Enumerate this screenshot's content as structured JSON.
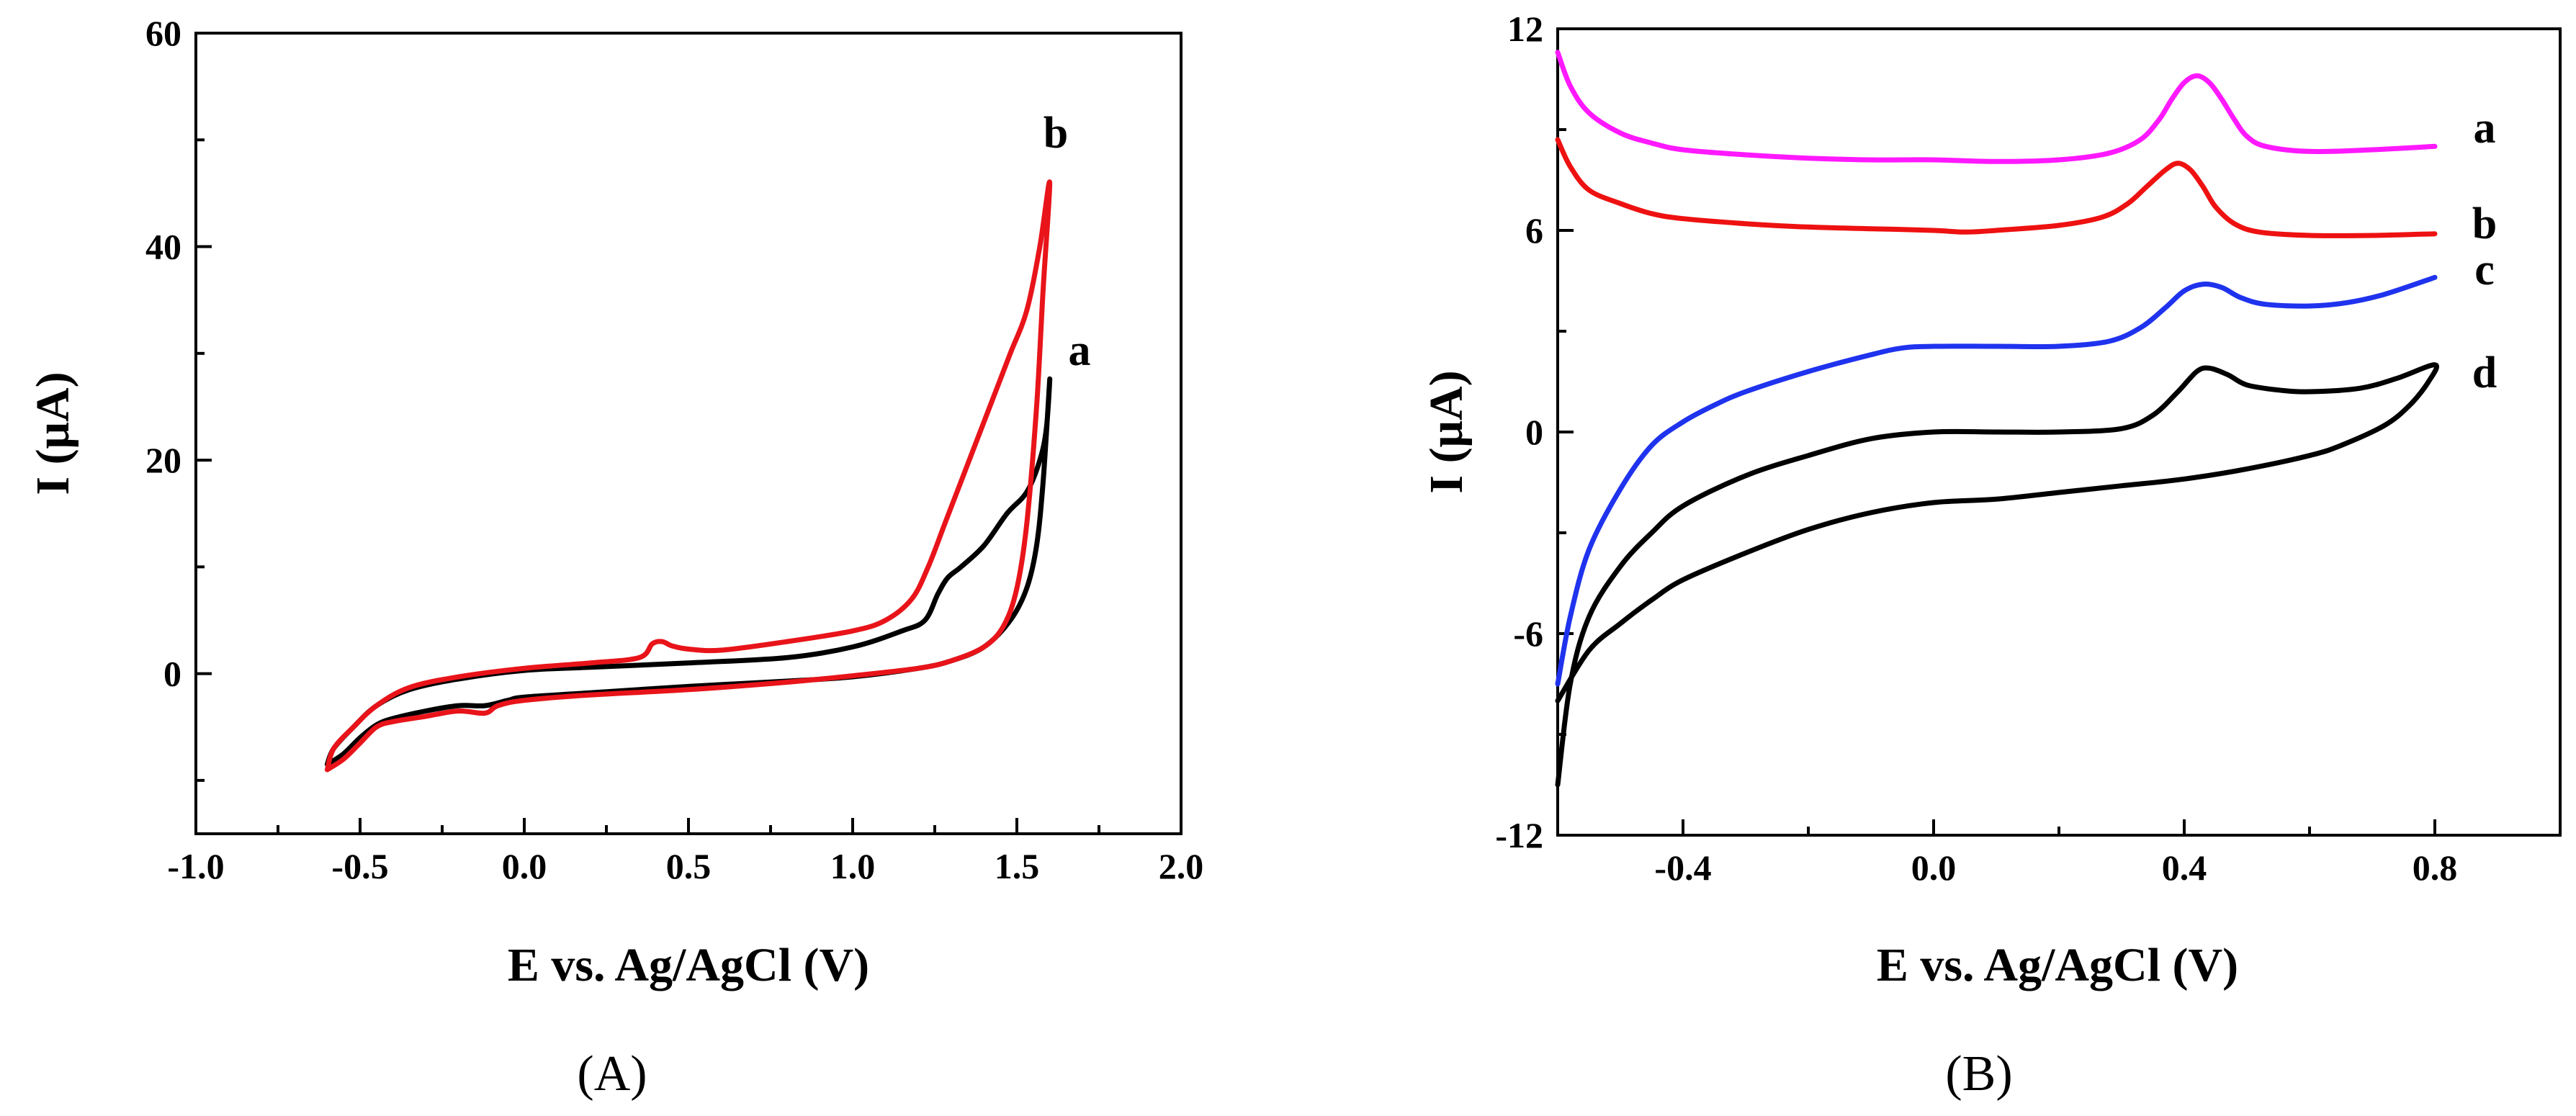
{
  "chart_data": [
    {
      "type": "line",
      "panel_label": "(A)",
      "xlabel": "E vs. Ag/AgCl (V)",
      "ylabel": "I (μA)",
      "xlim": [
        -1.0,
        2.0
      ],
      "ylim": [
        -15,
        60
      ],
      "xticks": [
        -1.0,
        -0.5,
        0.0,
        0.5,
        1.0,
        1.5,
        2.0
      ],
      "xtick_labels": [
        "-1.0",
        "-0.5",
        "0.0",
        "0.5",
        "1.0",
        "1.5",
        "2.0"
      ],
      "yticks": [
        0,
        20,
        40,
        60
      ],
      "ytick_labels": [
        "0",
        "20",
        "40",
        "60"
      ],
      "series": [
        {
          "name": "a",
          "color": "#000000",
          "points": [
            [
              -0.6,
              -8.5
            ],
            [
              -0.55,
              -7.5
            ],
            [
              -0.5,
              -6
            ],
            [
              -0.45,
              -4.8
            ],
            [
              -0.4,
              -4.2
            ],
            [
              -0.3,
              -3.5
            ],
            [
              -0.2,
              -3
            ],
            [
              -0.12,
              -3
            ],
            [
              -0.05,
              -2.5
            ],
            [
              0.0,
              -2.2
            ],
            [
              0.2,
              -1.8
            ],
            [
              0.5,
              -1.2
            ],
            [
              0.8,
              -0.7
            ],
            [
              1.0,
              -0.3
            ],
            [
              1.2,
              0.5
            ],
            [
              1.3,
              1.2
            ],
            [
              1.4,
              2.5
            ],
            [
              1.48,
              5
            ],
            [
              1.53,
              8
            ],
            [
              1.56,
              12
            ],
            [
              1.58,
              18
            ],
            [
              1.6,
              27.5
            ],
            [
              1.59,
              23
            ],
            [
              1.57,
              20
            ],
            [
              1.53,
              17
            ],
            [
              1.47,
              15
            ],
            [
              1.4,
              12
            ],
            [
              1.33,
              10
            ],
            [
              1.29,
              9
            ],
            [
              1.26,
              7.5
            ],
            [
              1.22,
              5
            ],
            [
              1.15,
              4
            ],
            [
              1.0,
              2.5
            ],
            [
              0.8,
              1.5
            ],
            [
              0.5,
              1
            ],
            [
              0.2,
              0.6
            ],
            [
              0.0,
              0.3
            ],
            [
              -0.2,
              -0.5
            ],
            [
              -0.35,
              -1.5
            ],
            [
              -0.45,
              -3
            ],
            [
              -0.52,
              -5
            ],
            [
              -0.58,
              -7
            ],
            [
              -0.6,
              -8.5
            ]
          ]
        },
        {
          "name": "b",
          "color": "#e8141a",
          "points": [
            [
              -0.6,
              -9
            ],
            [
              -0.55,
              -8
            ],
            [
              -0.5,
              -6.5
            ],
            [
              -0.45,
              -5
            ],
            [
              -0.4,
              -4.5
            ],
            [
              -0.3,
              -4
            ],
            [
              -0.2,
              -3.5
            ],
            [
              -0.12,
              -3.7
            ],
            [
              -0.08,
              -3
            ],
            [
              0.0,
              -2.5
            ],
            [
              0.2,
              -2
            ],
            [
              0.5,
              -1.5
            ],
            [
              0.8,
              -0.8
            ],
            [
              1.0,
              -0.2
            ],
            [
              1.2,
              0.5
            ],
            [
              1.3,
              1.2
            ],
            [
              1.4,
              2.5
            ],
            [
              1.46,
              4.5
            ],
            [
              1.5,
              8
            ],
            [
              1.53,
              14
            ],
            [
              1.56,
              25
            ],
            [
              1.58,
              36
            ],
            [
              1.6,
              46
            ],
            [
              1.57,
              40
            ],
            [
              1.53,
              34
            ],
            [
              1.48,
              30
            ],
            [
              1.43,
              26
            ],
            [
              1.38,
              22
            ],
            [
              1.33,
              18
            ],
            [
              1.28,
              14
            ],
            [
              1.23,
              10
            ],
            [
              1.18,
              7
            ],
            [
              1.1,
              5
            ],
            [
              1.0,
              4
            ],
            [
              0.8,
              3
            ],
            [
              0.6,
              2.2
            ],
            [
              0.5,
              2.3
            ],
            [
              0.45,
              2.6
            ],
            [
              0.42,
              3
            ],
            [
              0.39,
              2.8
            ],
            [
              0.35,
              1.5
            ],
            [
              0.2,
              1
            ],
            [
              0.0,
              0.5
            ],
            [
              -0.2,
              -0.3
            ],
            [
              -0.35,
              -1.3
            ],
            [
              -0.45,
              -3
            ],
            [
              -0.52,
              -5
            ],
            [
              -0.58,
              -7
            ],
            [
              -0.6,
              -9
            ]
          ]
        }
      ],
      "annotations": [
        "a",
        "b"
      ]
    },
    {
      "type": "line",
      "panel_label": "(B)",
      "xlabel": "E vs. Ag/AgCl (V)",
      "ylabel": "I (μA)",
      "xlim": [
        -0.6,
        1.0
      ],
      "ylim": [
        -12,
        12
      ],
      "xticks": [
        -0.4,
        0.0,
        0.4,
        0.8
      ],
      "xtick_labels": [
        "-0.4",
        "0.0",
        "0.4",
        "0.8"
      ],
      "yticks": [
        -12,
        -6,
        0,
        6,
        12
      ],
      "ytick_labels": [
        "-12",
        "-6",
        "0",
        "6",
        "12"
      ],
      "series": [
        {
          "name": "a",
          "color": "#ff19ff",
          "points": [
            [
              -0.6,
              11.3
            ],
            [
              -0.58,
              10.3
            ],
            [
              -0.55,
              9.5
            ],
            [
              -0.5,
              8.9
            ],
            [
              -0.45,
              8.6
            ],
            [
              -0.4,
              8.4
            ],
            [
              -0.3,
              8.25
            ],
            [
              -0.2,
              8.15
            ],
            [
              -0.1,
              8.1
            ],
            [
              0.0,
              8.1
            ],
            [
              0.1,
              8.05
            ],
            [
              0.2,
              8.1
            ],
            [
              0.28,
              8.3
            ],
            [
              0.33,
              8.7
            ],
            [
              0.36,
              9.3
            ],
            [
              0.38,
              9.9
            ],
            [
              0.4,
              10.4
            ],
            [
              0.42,
              10.6
            ],
            [
              0.44,
              10.4
            ],
            [
              0.46,
              9.9
            ],
            [
              0.48,
              9.3
            ],
            [
              0.5,
              8.8
            ],
            [
              0.53,
              8.5
            ],
            [
              0.6,
              8.35
            ],
            [
              0.7,
              8.4
            ],
            [
              0.8,
              8.5
            ]
          ]
        },
        {
          "name": "b",
          "color": "#ee1111",
          "points": [
            [
              -0.6,
              8.7
            ],
            [
              -0.58,
              7.9
            ],
            [
              -0.55,
              7.2
            ],
            [
              -0.5,
              6.8
            ],
            [
              -0.45,
              6.5
            ],
            [
              -0.4,
              6.35
            ],
            [
              -0.3,
              6.2
            ],
            [
              -0.2,
              6.1
            ],
            [
              -0.1,
              6.05
            ],
            [
              0.0,
              6.0
            ],
            [
              0.05,
              5.95
            ],
            [
              0.1,
              6.0
            ],
            [
              0.2,
              6.15
            ],
            [
              0.27,
              6.4
            ],
            [
              0.31,
              6.8
            ],
            [
              0.34,
              7.3
            ],
            [
              0.37,
              7.8
            ],
            [
              0.39,
              8.0
            ],
            [
              0.41,
              7.8
            ],
            [
              0.43,
              7.3
            ],
            [
              0.45,
              6.7
            ],
            [
              0.48,
              6.2
            ],
            [
              0.52,
              5.95
            ],
            [
              0.6,
              5.85
            ],
            [
              0.7,
              5.85
            ],
            [
              0.8,
              5.9
            ]
          ]
        },
        {
          "name": "c",
          "color": "#1f33ee",
          "points": [
            [
              -0.6,
              -7.5
            ],
            [
              -0.58,
              -5.5
            ],
            [
              -0.55,
              -3.5
            ],
            [
              -0.5,
              -1.7
            ],
            [
              -0.45,
              -0.4
            ],
            [
              -0.4,
              0.3
            ],
            [
              -0.35,
              0.8
            ],
            [
              -0.3,
              1.2
            ],
            [
              -0.2,
              1.8
            ],
            [
              -0.1,
              2.3
            ],
            [
              -0.05,
              2.5
            ],
            [
              0.0,
              2.55
            ],
            [
              0.1,
              2.55
            ],
            [
              0.2,
              2.55
            ],
            [
              0.28,
              2.7
            ],
            [
              0.33,
              3.1
            ],
            [
              0.37,
              3.7
            ],
            [
              0.4,
              4.2
            ],
            [
              0.43,
              4.4
            ],
            [
              0.46,
              4.3
            ],
            [
              0.49,
              4.0
            ],
            [
              0.53,
              3.8
            ],
            [
              0.6,
              3.75
            ],
            [
              0.66,
              3.85
            ],
            [
              0.72,
              4.1
            ],
            [
              0.8,
              4.6
            ]
          ]
        },
        {
          "name": "d",
          "color": "#000000",
          "points": [
            [
              -0.6,
              -10.5
            ],
            [
              -0.58,
              -7.5
            ],
            [
              -0.55,
              -5.5
            ],
            [
              -0.5,
              -4
            ],
            [
              -0.45,
              -3
            ],
            [
              -0.4,
              -2.2
            ],
            [
              -0.3,
              -1.3
            ],
            [
              -0.2,
              -0.7
            ],
            [
              -0.1,
              -0.2
            ],
            [
              0.0,
              0.0
            ],
            [
              0.1,
              0.0
            ],
            [
              0.2,
              0.0
            ],
            [
              0.3,
              0.1
            ],
            [
              0.35,
              0.5
            ],
            [
              0.39,
              1.2
            ],
            [
              0.42,
              1.8
            ],
            [
              0.44,
              1.9
            ],
            [
              0.47,
              1.7
            ],
            [
              0.5,
              1.4
            ],
            [
              0.55,
              1.25
            ],
            [
              0.6,
              1.2
            ],
            [
              0.68,
              1.3
            ],
            [
              0.74,
              1.6
            ],
            [
              0.8,
              2.0
            ],
            [
              0.79,
              1.5
            ],
            [
              0.76,
              0.8
            ],
            [
              0.72,
              0.2
            ],
            [
              0.65,
              -0.4
            ],
            [
              0.6,
              -0.7
            ],
            [
              0.5,
              -1.1
            ],
            [
              0.4,
              -1.4
            ],
            [
              0.3,
              -1.6
            ],
            [
              0.2,
              -1.8
            ],
            [
              0.1,
              -2.0
            ],
            [
              0.0,
              -2.1
            ],
            [
              -0.1,
              -2.4
            ],
            [
              -0.2,
              -2.9
            ],
            [
              -0.3,
              -3.6
            ],
            [
              -0.4,
              -4.4
            ],
            [
              -0.45,
              -5.0
            ],
            [
              -0.5,
              -5.7
            ],
            [
              -0.55,
              -6.5
            ],
            [
              -0.6,
              -8
            ]
          ]
        }
      ],
      "annotations": [
        "a",
        "b",
        "c",
        "d"
      ]
    }
  ]
}
